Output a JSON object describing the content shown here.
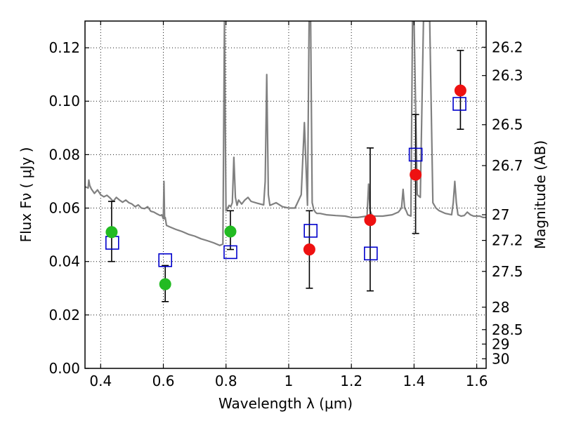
{
  "chart_data": {
    "type": "scatter",
    "xlabel": "Wavelength  λ (μm)",
    "ylabel": "Flux  Fν  ( μJy )",
    "y2label": "Magnitude (AB)",
    "xlim": [
      0.35,
      1.63
    ],
    "ylim": [
      0.0,
      0.13
    ],
    "grid": true,
    "x_ticks": [
      0.4,
      0.6,
      0.8,
      1.0,
      1.2,
      1.4,
      1.6
    ],
    "x_tick_labels": [
      "0.4",
      "0.6",
      "0.8",
      "1",
      "1.2",
      "1.4",
      "1.6"
    ],
    "y_ticks": [
      0.0,
      0.02,
      0.04,
      0.06,
      0.08,
      0.1,
      0.12
    ],
    "y_tick_labels": [
      "0.00",
      "0.02",
      "0.04",
      "0.06",
      "0.08",
      "0.10",
      "0.12"
    ],
    "mag_ticks": [
      {
        "label": "26.2",
        "flux": 0.1202
      },
      {
        "label": "26.3",
        "flux": 0.1096
      },
      {
        "label": "26.5",
        "flux": 0.0912
      },
      {
        "label": "26.7",
        "flux": 0.0759
      },
      {
        "label": "27",
        "flux": 0.0575
      },
      {
        "label": "27.2",
        "flux": 0.0479
      },
      {
        "label": "27.5",
        "flux": 0.0363
      },
      {
        "label": "28",
        "flux": 0.0229
      },
      {
        "label": "28.5",
        "flux": 0.0145
      },
      {
        "label": "29",
        "flux": 0.0091
      },
      {
        "label": "30",
        "flux": 0.0036
      }
    ],
    "series": [
      {
        "marker": "square",
        "color": "#0000cc",
        "x": [
          0.437,
          0.606,
          0.814,
          1.07,
          1.262,
          1.405,
          1.545
        ],
        "y": [
          0.047,
          0.0405,
          0.0435,
          0.0515,
          0.043,
          0.08,
          0.099
        ]
      },
      {
        "marker": "circle",
        "color": "#22bb22",
        "x": [
          0.435,
          0.606,
          0.814
        ],
        "y": [
          0.051,
          0.0315,
          0.0512
        ],
        "err_low": [
          0.04,
          0.025,
          0.0445
        ],
        "err_high": [
          0.0625,
          0.0385,
          0.059
        ]
      },
      {
        "marker": "circle",
        "color": "#ee1111",
        "x": [
          1.066,
          1.26,
          1.405,
          1.548
        ],
        "y": [
          0.0445,
          0.0555,
          0.0725,
          0.104
        ],
        "err_low": [
          0.03,
          0.029,
          0.0505,
          0.0895
        ],
        "err_high": [
          0.059,
          0.0825,
          0.095,
          0.119
        ]
      }
    ],
    "model_spectrum": {
      "color": "#808080",
      "x": [
        0.35,
        0.36,
        0.362,
        0.365,
        0.37,
        0.38,
        0.39,
        0.4,
        0.41,
        0.42,
        0.43,
        0.44,
        0.45,
        0.46,
        0.47,
        0.48,
        0.49,
        0.5,
        0.51,
        0.52,
        0.53,
        0.54,
        0.55,
        0.56,
        0.57,
        0.58,
        0.59,
        0.595,
        0.6,
        0.602,
        0.604,
        0.606,
        0.61,
        0.62,
        0.63,
        0.64,
        0.66,
        0.68,
        0.7,
        0.72,
        0.74,
        0.76,
        0.78,
        0.79,
        0.795,
        0.8,
        0.805,
        0.81,
        0.815,
        0.82,
        0.825,
        0.83,
        0.835,
        0.84,
        0.85,
        0.86,
        0.87,
        0.88,
        0.9,
        0.92,
        0.925,
        0.93,
        0.935,
        0.94,
        0.96,
        0.98,
        1.0,
        1.02,
        1.04,
        1.05,
        1.06,
        1.065,
        1.07,
        1.075,
        1.08,
        1.085,
        1.09,
        1.1,
        1.12,
        1.15,
        1.18,
        1.2,
        1.22,
        1.25,
        1.255,
        1.26,
        1.265,
        1.27,
        1.3,
        1.33,
        1.35,
        1.36,
        1.365,
        1.37,
        1.375,
        1.38,
        1.39,
        1.395,
        1.4,
        1.41,
        1.42,
        1.43,
        1.44,
        1.45,
        1.46,
        1.47,
        1.48,
        1.5,
        1.52,
        1.525,
        1.53,
        1.535,
        1.54,
        1.55,
        1.56,
        1.57,
        1.58,
        1.59,
        1.6,
        1.61,
        1.62,
        1.63
      ],
      "y": [
        0.068,
        0.0675,
        0.0705,
        0.0685,
        0.0672,
        0.0655,
        0.0668,
        0.065,
        0.0642,
        0.0648,
        0.0638,
        0.0625,
        0.064,
        0.063,
        0.0622,
        0.063,
        0.062,
        0.0615,
        0.0605,
        0.0612,
        0.06,
        0.0598,
        0.0605,
        0.0588,
        0.0585,
        0.0578,
        0.0572,
        0.0575,
        0.056,
        0.07,
        0.056,
        0.0565,
        0.0535,
        0.053,
        0.0525,
        0.052,
        0.0512,
        0.0502,
        0.0495,
        0.0485,
        0.0478,
        0.047,
        0.046,
        0.0465,
        0.13,
        0.059,
        0.06,
        0.061,
        0.0605,
        0.062,
        0.079,
        0.064,
        0.061,
        0.063,
        0.0615,
        0.063,
        0.064,
        0.0625,
        0.0618,
        0.0612,
        0.07,
        0.11,
        0.065,
        0.061,
        0.062,
        0.0605,
        0.06,
        0.06,
        0.065,
        0.092,
        0.061,
        0.13,
        0.13,
        0.062,
        0.0595,
        0.0585,
        0.058,
        0.058,
        0.0575,
        0.0572,
        0.057,
        0.0565,
        0.0565,
        0.057,
        0.069,
        0.059,
        0.0575,
        0.057,
        0.057,
        0.0575,
        0.0585,
        0.06,
        0.067,
        0.06,
        0.059,
        0.0575,
        0.057,
        0.13,
        0.13,
        0.065,
        0.064,
        0.13,
        0.13,
        0.13,
        0.062,
        0.06,
        0.059,
        0.058,
        0.0575,
        0.062,
        0.07,
        0.062,
        0.0575,
        0.057,
        0.0572,
        0.0585,
        0.0575,
        0.057,
        0.057,
        0.057,
        0.0565,
        0.0565
      ]
    }
  }
}
